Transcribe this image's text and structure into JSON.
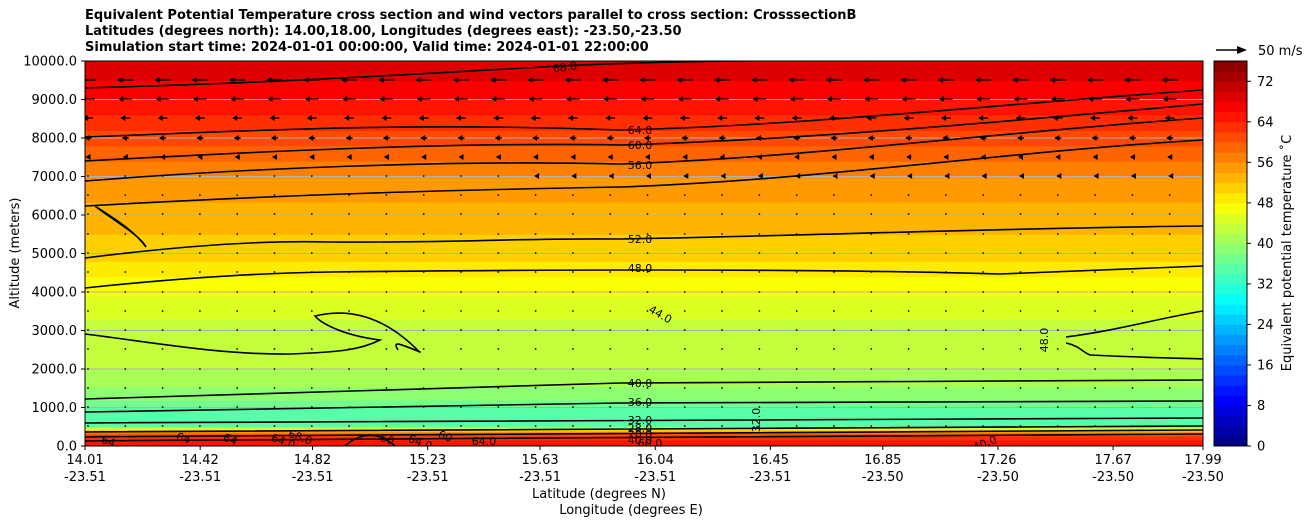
{
  "chart_data": {
    "type": "heatmap",
    "title_lines": [
      "Equivalent Potential Temperature cross section and wind vectors parallel to cross section: CrosssectionB",
      "Latitudes (degrees north): 14.00,18.00, Longitudes (degrees east): -23.50,-23.50",
      "Simulation start time: 2024-01-01 00:00:00, Valid time: 2024-01-01 22:00:00"
    ],
    "ylabel": "Altitude (meters)",
    "xlabel": "Latitude (degrees N)",
    "xlabel2": "Longitude (degrees E)",
    "ylim": [
      0,
      10000
    ],
    "yticks": [
      "0.0",
      "1000.0",
      "2000.0",
      "3000.0",
      "4000.0",
      "5000.0",
      "6000.0",
      "7000.0",
      "8000.0",
      "9000.0",
      "10000.0"
    ],
    "xticks": [
      {
        "lat": "14.01",
        "lon": "-23.51"
      },
      {
        "lat": "14.42",
        "lon": "-23.51"
      },
      {
        "lat": "14.82",
        "lon": "-23.51"
      },
      {
        "lat": "15.23",
        "lon": "-23.51"
      },
      {
        "lat": "15.63",
        "lon": "-23.51"
      },
      {
        "lat": "16.04",
        "lon": "-23.51"
      },
      {
        "lat": "16.45",
        "lon": "-23.51"
      },
      {
        "lat": "16.85",
        "lon": "-23.50"
      },
      {
        "lat": "17.26",
        "lon": "-23.50"
      },
      {
        "lat": "17.67",
        "lon": "-23.50"
      },
      {
        "lat": "17.99",
        "lon": "-23.50"
      }
    ],
    "colorbar": {
      "label": "Equivalent potential temperature ˚C",
      "range": [
        0,
        76
      ],
      "ticks": [
        "0",
        "8",
        "16",
        "24",
        "32",
        "40",
        "48",
        "56",
        "64",
        "72"
      ]
    },
    "quiver_key": "50 m/s",
    "contour_labels": [
      "68.0",
      "64.0",
      "60.0",
      "56.0",
      "52.0",
      "48.0",
      "44.0",
      "48.0",
      "40.0",
      "36.0",
      "32.0",
      "28.0",
      "20.0",
      "40.0",
      "60.0",
      "32.0",
      "40.0",
      "64",
      "64",
      "64",
      "64.0",
      "60",
      "64.0",
      "64.0",
      "60",
      "68.0"
    ],
    "profile": [
      {
        "alt": 0,
        "theta": 65
      },
      {
        "alt": 150,
        "theta": 64
      },
      {
        "alt": 300,
        "theta": 61
      },
      {
        "alt": 430,
        "theta": 50
      },
      {
        "alt": 520,
        "theta": 36
      },
      {
        "alt": 700,
        "theta": 34
      },
      {
        "alt": 1000,
        "theta": 36
      },
      {
        "alt": 1300,
        "theta": 39
      },
      {
        "alt": 2000,
        "theta": 42
      },
      {
        "alt": 3000,
        "theta": 43
      },
      {
        "alt": 4200,
        "theta": 47
      },
      {
        "alt": 5000,
        "theta": 51
      },
      {
        "alt": 6000,
        "theta": 53
      },
      {
        "alt": 7000,
        "theta": 56
      },
      {
        "alt": 8000,
        "theta": 61
      },
      {
        "alt": 9000,
        "theta": 66
      },
      {
        "alt": 9500,
        "theta": 68
      },
      {
        "alt": 10000,
        "theta": 70
      }
    ]
  }
}
